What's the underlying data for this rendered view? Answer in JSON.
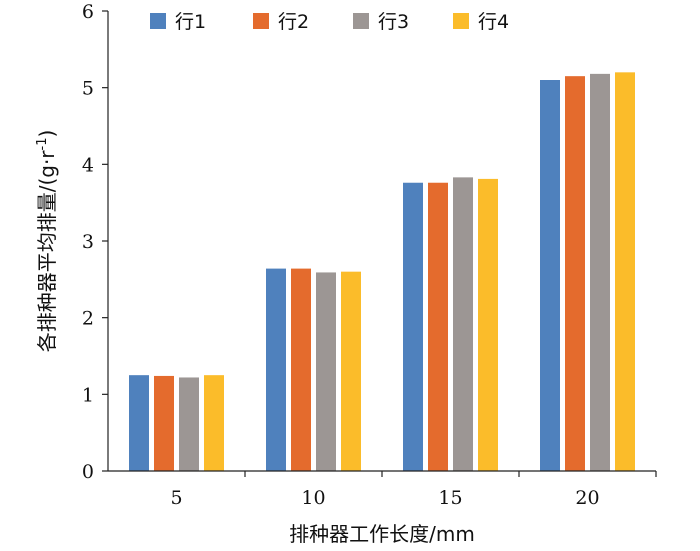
{
  "chart_data": {
    "type": "bar",
    "categories": [
      "5",
      "10",
      "15",
      "20"
    ],
    "series": [
      {
        "name": "行1",
        "color": "#4F81BD",
        "values": [
          1.25,
          2.64,
          3.76,
          5.1
        ]
      },
      {
        "name": "行2",
        "color": "#E46B2D",
        "values": [
          1.24,
          2.64,
          3.76,
          5.15
        ]
      },
      {
        "name": "行3",
        "color": "#9C9694",
        "values": [
          1.22,
          2.59,
          3.83,
          5.18
        ]
      },
      {
        "name": "行4",
        "color": "#FBBC2A",
        "values": [
          1.25,
          2.6,
          3.81,
          5.2
        ]
      }
    ],
    "ylim": [
      0,
      6
    ],
    "yticks": [
      "0",
      "1",
      "2",
      "3",
      "4",
      "5",
      "6"
    ],
    "xlabel": "排种器工作长度/mm",
    "ylabel": "各排种器平均排量/(g·r",
    "ylabel_sup": "-1",
    "ylabel_tail": ")",
    "legend_position": "top",
    "grid": false
  }
}
